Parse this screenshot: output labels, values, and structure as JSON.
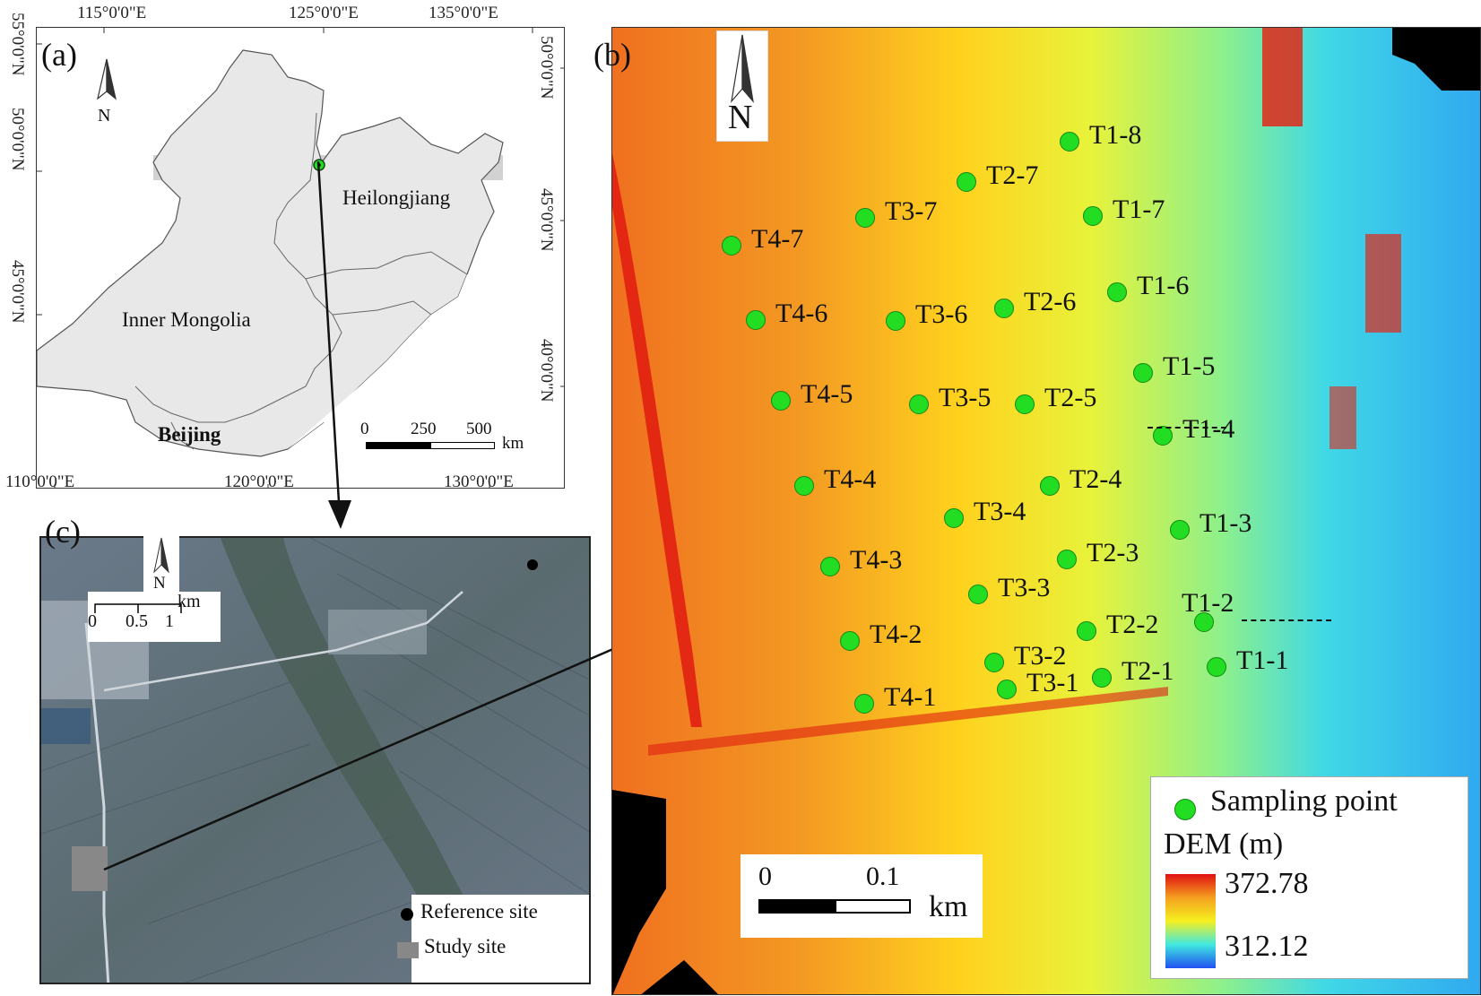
{
  "panel_a": {
    "label": "(a)",
    "top_lon_labels": [
      "115°0'0\"E",
      "125°0'0\"E",
      "135°0'0\"E"
    ],
    "bottom_lon_labels": [
      "110°0'0\"E",
      "120°0'0\"E",
      "130°0'0\"E"
    ],
    "left_lat_labels": [
      "55°0'0\"N",
      "50°0'0\"N",
      "45°0'0\"N"
    ],
    "right_lat_labels": [
      "50°0'0\"N",
      "45°0'0\"N",
      "40°0'0\"N"
    ],
    "north": "N",
    "regions": {
      "heilongjiang": "Heilongjiang",
      "inner_mongolia": "Inner Mongolia",
      "beijing": "Beijing"
    },
    "scale": {
      "ticks": [
        "0",
        "250",
        "500"
      ],
      "unit": "km"
    }
  },
  "panel_b": {
    "label": "(b)",
    "north": "N",
    "points": [
      {
        "name": "T1-8"
      },
      {
        "name": "T2-7"
      },
      {
        "name": "T3-7"
      },
      {
        "name": "T1-7"
      },
      {
        "name": "T4-7"
      },
      {
        "name": "T1-6"
      },
      {
        "name": "T2-6"
      },
      {
        "name": "T3-6"
      },
      {
        "name": "T4-6"
      },
      {
        "name": "T1-5"
      },
      {
        "name": "T2-5"
      },
      {
        "name": "T3-5"
      },
      {
        "name": "T4-5"
      },
      {
        "name": "T1-4"
      },
      {
        "name": "T2-4"
      },
      {
        "name": "T4-4"
      },
      {
        "name": "T3-4"
      },
      {
        "name": "T1-3"
      },
      {
        "name": "T2-3"
      },
      {
        "name": "T4-3"
      },
      {
        "name": "T3-3"
      },
      {
        "name": "T1-2"
      },
      {
        "name": "T2-2"
      },
      {
        "name": "T4-2"
      },
      {
        "name": "T3-2"
      },
      {
        "name": "T1-1"
      },
      {
        "name": "T2-1"
      },
      {
        "name": "T3-1"
      },
      {
        "name": "T4-1"
      }
    ],
    "scale": {
      "ticks": [
        "0",
        "0.1"
      ],
      "unit": "km"
    },
    "legend": {
      "sampling_point": "Sampling point",
      "dem_title": "DEM (m)",
      "dem_max": "372.78",
      "dem_min": "312.12"
    }
  },
  "panel_c": {
    "label": "(c)",
    "north": "N",
    "scale": {
      "ticks": [
        "0",
        "0.5",
        "1"
      ],
      "unit": "km"
    },
    "legend": {
      "reference_site": "Reference site",
      "study_site": "Study site"
    }
  },
  "colors": {
    "sampling_point": "#22dd22",
    "land": "#e6e6e6",
    "dem_high": "#e01010",
    "dem_low": "#2040e0"
  }
}
